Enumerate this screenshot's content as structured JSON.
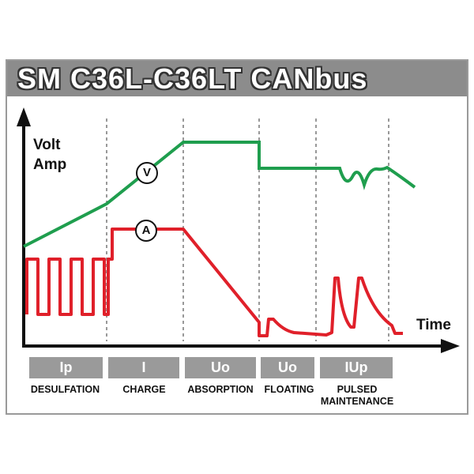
{
  "title": "SM C36L-C36LT CANbus",
  "axes": {
    "y_label_top": "Volt",
    "y_label_bottom": "Amp",
    "x_label": "Time"
  },
  "curve_markers": {
    "voltage": "V",
    "current": "A"
  },
  "phases": [
    {
      "code": "Ip",
      "name": "DESULFATION"
    },
    {
      "code": "I",
      "name": "CHARGE"
    },
    {
      "code": "Uo",
      "name": "ABSORPTION"
    },
    {
      "code": "Uo",
      "name": "FLOATING"
    },
    {
      "code": "IUp",
      "name": "PULSED MAINTENANCE"
    }
  ]
}
